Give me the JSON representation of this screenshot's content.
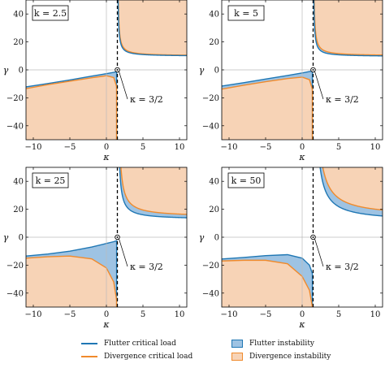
{
  "colors": {
    "flutter_line": "#1f77b4",
    "flutter_fill": "#9ec3e3",
    "divergence_line": "#f08a2c",
    "divergence_fill": "#f7d3b6",
    "dashed": "#000000"
  },
  "legend": {
    "flutter_line": "Flutter critical load",
    "divergence_line": "Divergence critical load",
    "flutter_fill": "Flutter instability",
    "divergence_fill": "Divergence instability"
  },
  "chart_data": [
    {
      "type": "area",
      "title": "",
      "panel_label": "k = 2.5",
      "xlabel": "κ",
      "ylabel": "γ",
      "xlim": [
        -11,
        11
      ],
      "ylim": [
        -50,
        50
      ],
      "xticks": [
        "−10",
        "−5",
        "0",
        "5",
        "10"
      ],
      "yticks": [
        "−40",
        "−20",
        "0",
        "20",
        "40"
      ],
      "k": 2.5,
      "asymptote_x": 1.5,
      "annotation": "κ = 3/2",
      "series": [
        {
          "name": "Flutter critical load",
          "x": [
            -11,
            -8,
            -5,
            -2,
            0,
            1,
            1.4
          ],
          "y": [
            -12.2,
            -9.8,
            -7.2,
            -4.5,
            -2.7,
            -1.8,
            -1.3
          ]
        },
        {
          "name": "Divergence critical load",
          "x": [
            -11,
            -8,
            -5,
            -2,
            0,
            1,
            1.4
          ],
          "y": [
            -13.4,
            -10.6,
            -8.1,
            -5.6,
            -4.2,
            -5.5,
            -12
          ]
        }
      ]
    },
    {
      "type": "area",
      "title": "",
      "panel_label": "k = 5",
      "xlabel": "κ",
      "ylabel": "γ",
      "xlim": [
        -11,
        11
      ],
      "ylim": [
        -50,
        50
      ],
      "xticks": [
        "−10",
        "−5",
        "0",
        "5",
        "10"
      ],
      "yticks": [
        "−40",
        "−20",
        "0",
        "20",
        "40"
      ],
      "k": 5,
      "asymptote_x": 1.5,
      "annotation": "κ = 3/2",
      "series": [
        {
          "name": "Flutter critical load",
          "x": [
            -11,
            -8,
            -5,
            -2,
            0,
            1,
            1.4
          ],
          "y": [
            -11.6,
            -9.2,
            -6.6,
            -4,
            -2.2,
            -1.2,
            -0.8
          ]
        },
        {
          "name": "Divergence critical load",
          "x": [
            -11,
            -8,
            -5,
            -2,
            0,
            1,
            1.4
          ],
          "y": [
            -13.8,
            -11,
            -8.5,
            -6.2,
            -5.2,
            -7,
            -14
          ]
        }
      ]
    },
    {
      "type": "area",
      "title": "",
      "panel_label": "k = 25",
      "xlabel": "κ",
      "ylabel": "γ",
      "xlim": [
        -11,
        11
      ],
      "ylim": [
        -50,
        50
      ],
      "xticks": [
        "−10",
        "−5",
        "0",
        "5",
        "10"
      ],
      "yticks": [
        "−40",
        "−20",
        "0",
        "20",
        "40"
      ],
      "k": 25,
      "asymptote_x": 1.5,
      "annotation": "κ = 3/2",
      "series": [
        {
          "name": "Flutter critical load",
          "x": [
            -11,
            -8,
            -5,
            -2,
            0,
            1,
            1.4
          ],
          "y": [
            -13.5,
            -12,
            -10,
            -7,
            -4.5,
            -3.2,
            -2.5
          ]
        },
        {
          "name": "Divergence critical load",
          "x": [
            -11,
            -8,
            -5,
            -2,
            0,
            1,
            1.4
          ],
          "y": [
            -15,
            -14,
            -13.5,
            -15.5,
            -22,
            -32,
            -45
          ]
        }
      ]
    },
    {
      "type": "area",
      "title": "",
      "panel_label": "k = 50",
      "xlabel": "κ",
      "ylabel": "γ",
      "xlim": [
        -11,
        11
      ],
      "ylim": [
        -50,
        50
      ],
      "xticks": [
        "−10",
        "−5",
        "0",
        "5",
        "10"
      ],
      "yticks": [
        "−40",
        "−20",
        "0",
        "20",
        "40"
      ],
      "k": 50,
      "asymptote_x": 1.5,
      "annotation": "κ = 3/2",
      "series": [
        {
          "name": "Flutter critical load",
          "x": [
            -11,
            -8,
            -5,
            -2,
            0,
            1,
            1.4
          ],
          "y": [
            -15.6,
            -14.5,
            -13.2,
            -12.5,
            -15,
            -20,
            -26
          ]
        },
        {
          "name": "Divergence critical load",
          "x": [
            -11,
            -8,
            -5,
            -2,
            0,
            1,
            1.4
          ],
          "y": [
            -17,
            -16.5,
            -16.5,
            -19,
            -28,
            -38,
            -50
          ]
        }
      ]
    }
  ]
}
